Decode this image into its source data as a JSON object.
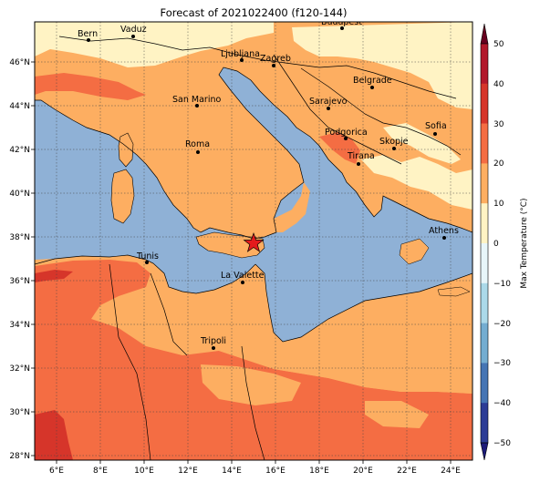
{
  "title": "Forecast of 2021022400 (f120-144)",
  "colorbar": {
    "label": "Max Temperature (°C)",
    "ticks": [
      "50",
      "40",
      "30",
      "20",
      "10",
      "0",
      "−10",
      "−20",
      "−30",
      "−40",
      "−50"
    ],
    "colors": [
      "#67001f",
      "#b2182b",
      "#d6352a",
      "#f46d43",
      "#fdae61",
      "#fff3c4",
      "#e8f6fa",
      "#abd9e9",
      "#74add1",
      "#4575b4",
      "#2c3c96",
      "#1c1a78"
    ]
  },
  "lon_labels": [
    "6°E",
    "8°E",
    "10°E",
    "12°E",
    "14°E",
    "16°E",
    "18°E",
    "20°E",
    "22°E",
    "24°E"
  ],
  "lat_labels": [
    "46°N",
    "44°N",
    "42°N",
    "40°N",
    "38°N",
    "36°N",
    "34°N",
    "32°N",
    "30°N",
    "28°N"
  ],
  "cities": [
    {
      "name": "Bern"
    },
    {
      "name": "Vaduz"
    },
    {
      "name": "Budapest"
    },
    {
      "name": "Ljubljana"
    },
    {
      "name": "Zagreb"
    },
    {
      "name": "San Marino"
    },
    {
      "name": "Belgrade"
    },
    {
      "name": "Sarajevo"
    },
    {
      "name": "Sofia"
    },
    {
      "name": "Podgorica"
    },
    {
      "name": "Skopje"
    },
    {
      "name": "Roma"
    },
    {
      "name": "Tirana"
    },
    {
      "name": "Athens"
    },
    {
      "name": "Tunis"
    },
    {
      "name": "La Valette"
    },
    {
      "name": "Tripoli"
    }
  ],
  "marker": {
    "type": "star",
    "color": "#e41a1c"
  }
}
